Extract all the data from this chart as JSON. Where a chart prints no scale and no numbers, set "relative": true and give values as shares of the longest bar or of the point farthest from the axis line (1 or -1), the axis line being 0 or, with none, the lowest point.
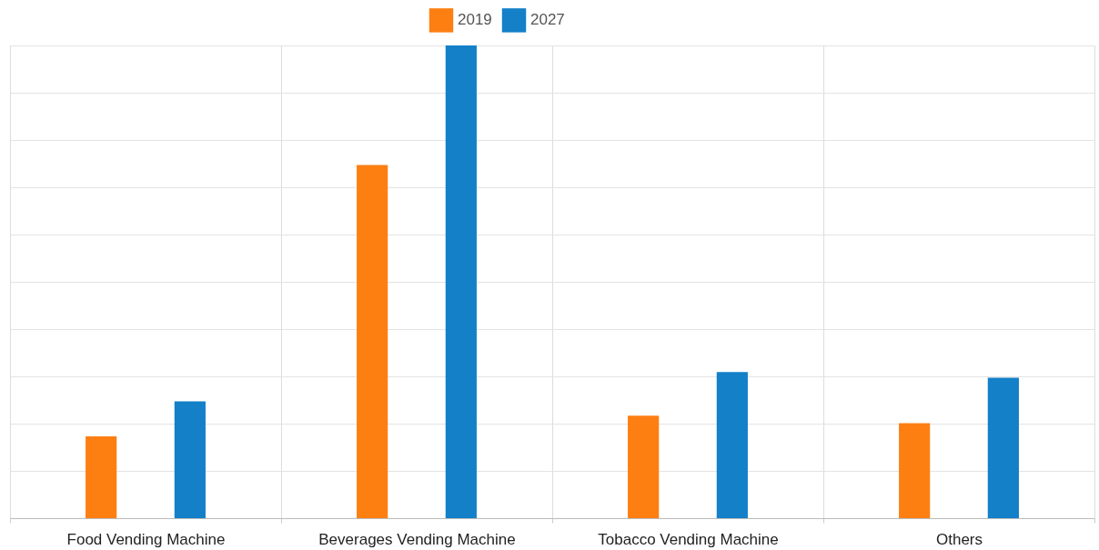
{
  "chart_data": {
    "type": "bar",
    "relative": true,
    "categories": [
      "Food Vending Machine",
      "Beverages Vending Machine",
      "Tobacco Vending Machine",
      "Others"
    ],
    "series": [
      {
        "name": "2019",
        "color": "#fd7f12",
        "values": [
          0.173,
          0.747,
          0.217,
          0.201
        ]
      },
      {
        "name": "2027",
        "color": "#1380c8",
        "values": [
          0.247,
          1,
          0.309,
          0.297
        ]
      }
    ],
    "grid": true,
    "legend": "top"
  }
}
